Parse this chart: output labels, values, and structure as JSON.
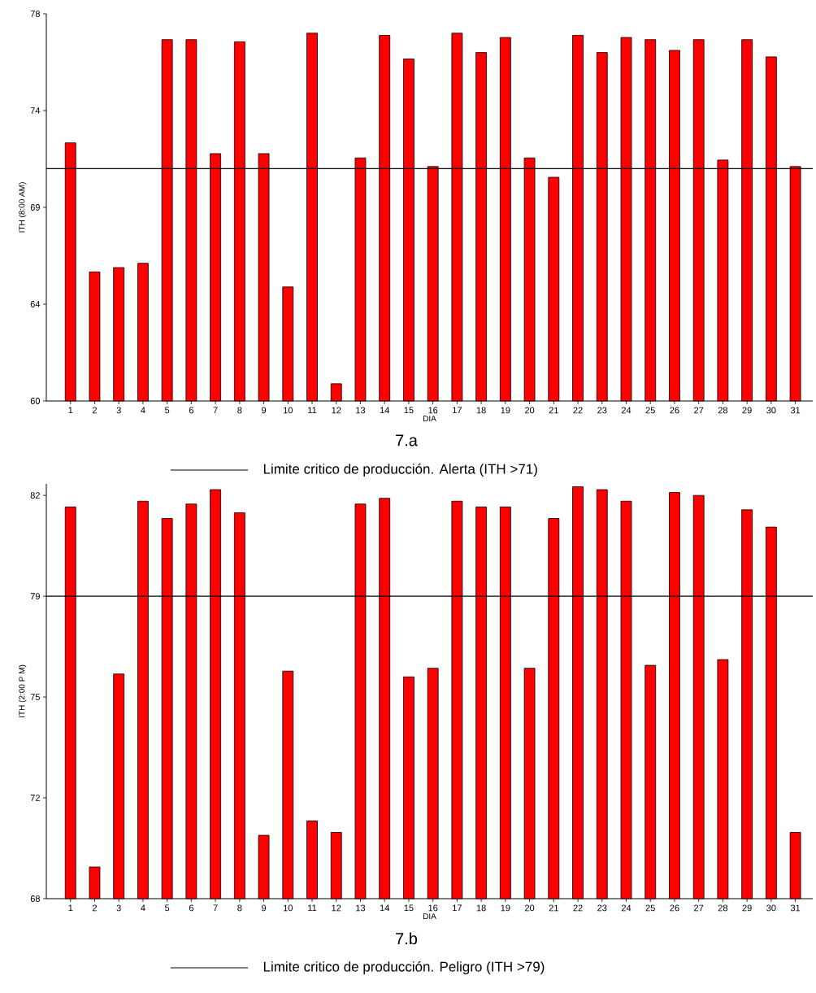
{
  "chart_data": [
    {
      "type": "bar",
      "ylabel": "ITH (8:00 AM)",
      "xlabel": "DIA",
      "annotations": [
        "7.a"
      ],
      "legend": "bottom",
      "color": "#ff0000",
      "categories": [
        "1",
        "2",
        "3",
        "4",
        "5",
        "6",
        "7",
        "8",
        "9",
        "10",
        "11",
        "12",
        "13",
        "14",
        "15",
        "16",
        "17",
        "18",
        "19",
        "20",
        "21",
        "22",
        "23",
        "24",
        "25",
        "26",
        "27",
        "28",
        "29",
        "30",
        "31"
      ],
      "values": [
        72.0,
        66.0,
        66.2,
        66.4,
        76.8,
        76.8,
        71.5,
        76.7,
        71.5,
        65.3,
        77.1,
        60.8,
        71.3,
        77.0,
        75.9,
        70.9,
        77.1,
        76.2,
        76.9,
        71.3,
        70.4,
        77.0,
        76.2,
        76.9,
        76.8,
        76.3,
        76.8,
        71.2,
        76.8,
        76.0,
        70.9
      ],
      "ylim": [
        60,
        78
      ],
      "yticks": [
        60,
        {
          "value": 64.5,
          "label": "64"
        },
        69,
        {
          "value": 73.5,
          "label": "74"
        },
        78
      ],
      "ref_lines": [
        {
          "axis": "y",
          "value": 70.8,
          "label": "Limite critico de producción. Alerta (ITH >71)",
          "color": "#000000",
          "line_style": "solid"
        }
      ]
    },
    {
      "type": "bar",
      "ylabel": "ITH (2:00 P M)",
      "xlabel": "DIA",
      "annotations": [
        "7.b"
      ],
      "legend": "bottom",
      "color": "#ff0000",
      "categories": [
        "1",
        "2",
        "3",
        "4",
        "5",
        "6",
        "7",
        "8",
        "9",
        "10",
        "11",
        "12",
        "13",
        "14",
        "15",
        "16",
        "17",
        "18",
        "19",
        "20",
        "21",
        "22",
        "23",
        "24",
        "25",
        "26",
        "27",
        "28",
        "29",
        "30",
        "31"
      ],
      "values": [
        81.6,
        69.1,
        75.8,
        81.8,
        81.2,
        81.7,
        82.2,
        81.4,
        70.2,
        75.9,
        70.7,
        70.3,
        81.7,
        81.9,
        75.7,
        76.0,
        81.8,
        81.6,
        81.6,
        76.0,
        81.2,
        82.3,
        82.2,
        81.8,
        76.1,
        82.1,
        82.0,
        76.3,
        81.5,
        80.9,
        70.3
      ],
      "ylim": [
        68,
        82.4
      ],
      "yticks": [
        68,
        {
          "value": 71.5,
          "label": "72"
        },
        75,
        {
          "value": 78.5,
          "label": "79"
        },
        82
      ],
      "ref_lines": [
        {
          "axis": "y",
          "value": 78.5,
          "label": "Limite critico de producción. Peligro (ITH >79)",
          "color": "#000000",
          "line_style": "solid"
        }
      ]
    }
  ]
}
